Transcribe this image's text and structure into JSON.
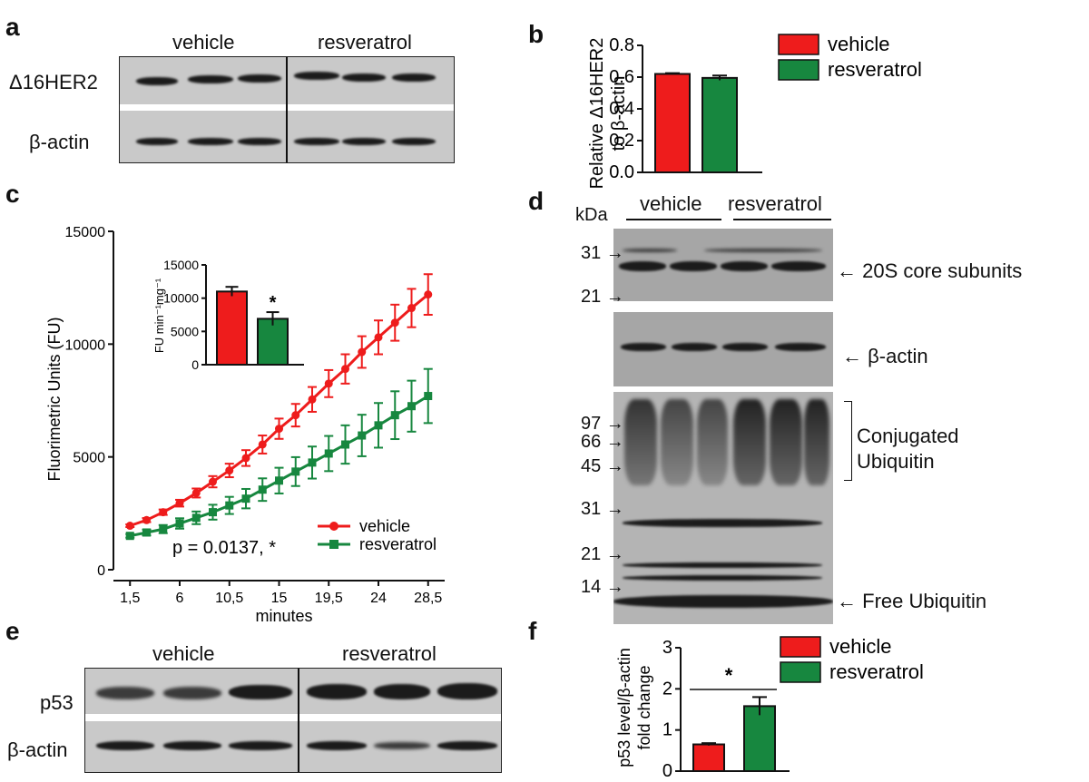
{
  "panels": {
    "a": {
      "letter": "a",
      "groups": [
        "vehicle",
        "resveratrol"
      ],
      "rows": [
        "Δ16HER2",
        "β-actin"
      ]
    },
    "b": {
      "letter": "b",
      "chart_data": {
        "type": "bar",
        "categories": [
          "vehicle",
          "resveratrol"
        ],
        "values": [
          0.62,
          0.595
        ],
        "errors": [
          0.005,
          0.015
        ],
        "ylabel_line1": "Relative Δ16HER2",
        "ylabel_line2": "to β-actin",
        "ylim": [
          0,
          0.8
        ],
        "yticks": [
          "0.0",
          "0.2",
          "0.4",
          "0.6",
          "0.8"
        ],
        "legend": [
          "vehicle",
          "resveratrol"
        ],
        "colors": [
          "#ee1c1c",
          "#17873f"
        ]
      }
    },
    "c": {
      "letter": "c",
      "chart_data": {
        "type": "line",
        "xlabel": "minutes",
        "ylabel": "Fluorimetric Units (FU)",
        "xticks": [
          "1,5",
          "6",
          "10,5",
          "15",
          "19,5",
          "24",
          "28,5"
        ],
        "yticks": [
          "0",
          "5000",
          "10000",
          "15000"
        ],
        "ylim": [
          0,
          15000
        ],
        "x": [
          1.5,
          3,
          4.5,
          6,
          7.5,
          9,
          10.5,
          12,
          13.5,
          15,
          16.5,
          18,
          19.5,
          21,
          22.5,
          24,
          25.5,
          27,
          28.5
        ],
        "series": [
          {
            "name": "vehicle",
            "color": "#ee1c1c",
            "values": [
              1950,
              2200,
              2550,
              2950,
              3400,
              3900,
              4400,
              4950,
              5550,
              6250,
              6850,
              7550,
              8250,
              8900,
              9650,
              10300,
              10950,
              11600,
              12200
            ],
            "errors": [
              60,
              90,
              120,
              150,
              200,
              250,
              300,
              350,
              400,
              450,
              500,
              550,
              600,
              650,
              700,
              750,
              800,
              850,
              900
            ]
          },
          {
            "name": "resveratrol",
            "color": "#17873f",
            "values": [
              1500,
              1650,
              1800,
              2050,
              2300,
              2550,
              2850,
              3150,
              3550,
              3950,
              4350,
              4750,
              5150,
              5550,
              5950,
              6400,
              6850,
              7250,
              7700
            ],
            "errors": [
              80,
              130,
              180,
              230,
              280,
              330,
              380,
              430,
              500,
              570,
              640,
              710,
              780,
              850,
              920,
              990,
              1060,
              1130,
              1200
            ]
          }
        ],
        "annotation": "p = 0.0137, *",
        "legend": [
          "vehicle",
          "resveratrol"
        ],
        "inset": {
          "type": "bar",
          "ylabel": "FU min⁻¹mg⁻¹",
          "yticks": [
            "0",
            "5000",
            "10000",
            "15000"
          ],
          "ylim": [
            0,
            15000
          ],
          "values": [
            11000,
            6900
          ],
          "errors": [
            700,
            1000
          ],
          "significance": "*",
          "colors": [
            "#ee1c1c",
            "#17873f"
          ]
        }
      }
    },
    "d": {
      "letter": "d",
      "kda_label": "kDa",
      "groups": [
        "vehicle",
        "resveratrol"
      ],
      "markers_top": [
        "31",
        "21"
      ],
      "markers_bottom": [
        "97",
        "66",
        "45",
        "31",
        "21",
        "14"
      ],
      "annotations": [
        "20S core subunits",
        "β-actin",
        "Conjugated",
        "Ubiquitin",
        "Free Ubiquitin"
      ]
    },
    "e": {
      "letter": "e",
      "groups": [
        "vehicle",
        "resveratrol"
      ],
      "rows": [
        "p53",
        "β-actin"
      ]
    },
    "f": {
      "letter": "f",
      "chart_data": {
        "type": "bar",
        "categories": [
          "vehicle",
          "resveratrol"
        ],
        "values": [
          0.65,
          1.58
        ],
        "errors": [
          0.03,
          0.22
        ],
        "ylabel_line1": "p53 level/β-actin",
        "ylabel_line2": "fold change",
        "ylim": [
          0,
          3
        ],
        "yticks": [
          "0",
          "1",
          "2",
          "3"
        ],
        "significance": "*",
        "legend": [
          "vehicle",
          "resveratrol"
        ],
        "colors": [
          "#ee1c1c",
          "#17873f"
        ]
      }
    }
  }
}
